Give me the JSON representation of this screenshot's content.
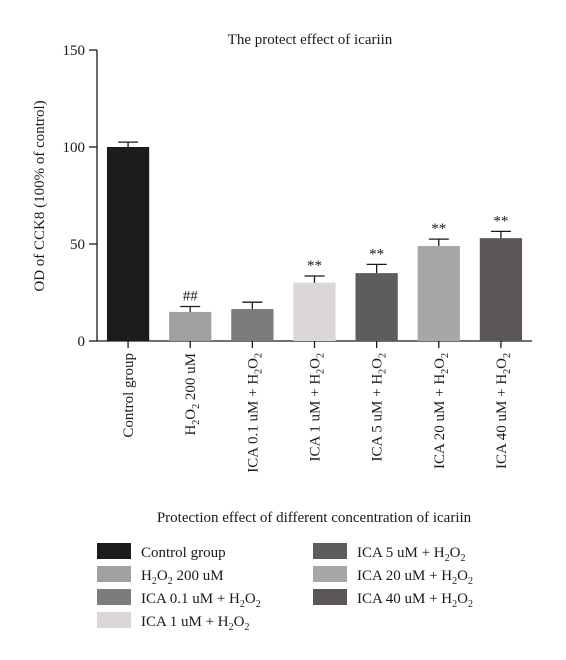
{
  "chart_data": {
    "type": "bar",
    "title": "The protect effect of icariin",
    "xlabel": "Protection effect of different concentration of icariin",
    "ylabel": "OD of CCK8 (100% of control)",
    "ylim": [
      0,
      150
    ],
    "yticks": [
      0,
      50,
      100,
      150
    ],
    "grid": false,
    "legend_placement": "bottom",
    "categories": [
      {
        "main": "Control group",
        "sub": "",
        "tail": ""
      },
      {
        "main": "H",
        "sub": "2",
        "tail": "O",
        "sub2": "2",
        "tail2": " 200 uM"
      },
      {
        "main": "ICA 0.1 uM + H",
        "sub": "2",
        "tail": "O",
        "sub2": "2",
        "tail2": ""
      },
      {
        "main": "ICA 1 uM + H",
        "sub": "2",
        "tail": "O",
        "sub2": "2",
        "tail2": ""
      },
      {
        "main": "ICA 5 uM + H",
        "sub": "2",
        "tail": "O",
        "sub2": "2",
        "tail2": ""
      },
      {
        "main": "ICA 20 uM + H",
        "sub": "2",
        "tail": "O",
        "sub2": "2",
        "tail2": ""
      },
      {
        "main": "ICA 40 uM + H",
        "sub": "2",
        "tail": "O",
        "sub2": "2",
        "tail2": ""
      }
    ],
    "values": [
      100,
      15,
      16.5,
      30,
      35,
      49,
      53
    ],
    "errors": [
      2.5,
      2.8,
      3.5,
      3.5,
      4.5,
      3.5,
      3.5
    ],
    "annotations": [
      "",
      "##",
      "",
      "**",
      "**",
      "**",
      "**"
    ],
    "colors": [
      "#1c1c1c",
      "#a29fa2",
      "#7e7b7e",
      "#dbd7d6",
      "#5f5c5f",
      "#a9a6a9",
      "#5a5659"
    ]
  },
  "legend": {
    "left": [
      0,
      1,
      2,
      3
    ],
    "right": [
      4,
      5,
      6
    ]
  }
}
